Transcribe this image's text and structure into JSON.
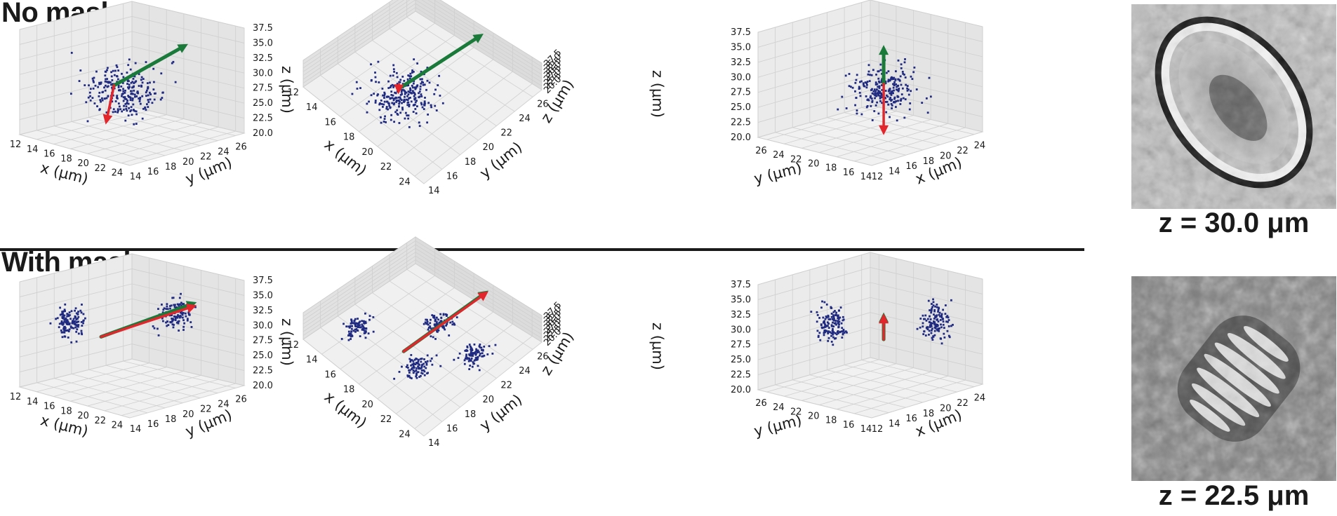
{
  "rows": [
    {
      "title": "No mask"
    },
    {
      "title": "With mask"
    }
  ],
  "images": [
    {
      "caption": "z = 30.0 μm"
    },
    {
      "caption": "z = 22.5 μm"
    }
  ],
  "colors": {
    "points": "#1f2a80",
    "green_arrow": "#1a7a3a",
    "red_arrow": "#e3262b",
    "pane": "#ebebeb",
    "grid": "#cfcfcf"
  },
  "chart_data": [
    {
      "type": "scatter",
      "title": "",
      "view": "perspective",
      "row": "No mask",
      "x_ticks": [
        "12",
        "14",
        "16",
        "18",
        "20",
        "22",
        "24"
      ],
      "y_ticks": [
        "14",
        "16",
        "18",
        "20",
        "22",
        "24",
        "26"
      ],
      "z_ticks": [
        "20.0",
        "22.5",
        "25.0",
        "27.5",
        "30.0",
        "32.5",
        "35.0",
        "37.5"
      ],
      "xlabel": "x (μm)",
      "ylabel": "y (μm)",
      "zlabel": "z (μm)",
      "xlim": [
        12,
        25
      ],
      "ylim": [
        14,
        27
      ],
      "zlim": [
        20,
        37.5
      ],
      "clusters": [
        {
          "cx": 19,
          "cy": 19,
          "cz": 28,
          "sx": 2.8,
          "sy": 2.5,
          "sz": 3.2,
          "n": 260
        }
      ],
      "vectors": [
        {
          "color": "green",
          "from": [
            18.5,
            18.5,
            29
          ],
          "to": [
            19,
            26.5,
            33
          ]
        },
        {
          "color": "red",
          "from": [
            18.5,
            18.5,
            29
          ],
          "to": [
            16,
            20,
            21
          ]
        }
      ]
    },
    {
      "type": "scatter",
      "title": "",
      "view": "top",
      "row": "No mask",
      "x_ticks": [
        "12",
        "14",
        "16",
        "18",
        "20",
        "22",
        "24"
      ],
      "y_ticks": [
        "14",
        "16",
        "18",
        "20",
        "22",
        "24",
        "26"
      ],
      "z_ticks": [
        "20.0",
        "22.5",
        "25.0",
        "27.5",
        "30.0",
        "32.5",
        "35.0",
        "37.5"
      ],
      "xlabel": "x (μm)",
      "ylabel": "y (μm)",
      "zlabel": "z (μm)",
      "xlim": [
        12,
        25
      ],
      "ylim": [
        14,
        27
      ],
      "zlim": [
        20,
        37.5
      ],
      "clusters": [
        {
          "cx": 18.5,
          "cy": 18.5,
          "cz": 28,
          "sx": 2.2,
          "sy": 2.2,
          "sz": 3,
          "n": 260
        }
      ],
      "vectors": [
        {
          "color": "green",
          "from": [
            18,
            18.5,
            29
          ],
          "to": [
            19,
            27,
            33
          ]
        },
        {
          "color": "red",
          "from": [
            18,
            18.5,
            29
          ],
          "to": [
            17.5,
            19,
            21
          ]
        }
      ]
    },
    {
      "type": "scatter",
      "title": "",
      "view": "side",
      "row": "No mask",
      "x_ticks": [
        "12",
        "14",
        "16",
        "18",
        "20",
        "22",
        "24"
      ],
      "y_ticks": [
        "14",
        "16",
        "18",
        "20",
        "22",
        "24",
        "26"
      ],
      "z_ticks": [
        "20.0",
        "22.5",
        "25.0",
        "27.5",
        "30.0",
        "32.5",
        "35.0",
        "37.5"
      ],
      "xlabel": "x (μm)",
      "ylabel": "y (μm)",
      "zlabel": "z (μm)",
      "xlim": [
        12,
        25
      ],
      "ylim": [
        14,
        27
      ],
      "zlim": [
        20,
        37.5
      ],
      "clusters": [
        {
          "cx": 18.5,
          "cy": 19,
          "cz": 28,
          "sx": 2.4,
          "sy": 2.4,
          "sz": 3.2,
          "n": 240
        }
      ],
      "vectors": [
        {
          "color": "green",
          "from": [
            18.5,
            19,
            29
          ],
          "to": [
            18.5,
            19,
            35.5
          ]
        },
        {
          "color": "red",
          "from": [
            18.5,
            19,
            29
          ],
          "to": [
            18.5,
            19,
            20.5
          ]
        }
      ]
    },
    {
      "type": "scatter",
      "title": "",
      "view": "perspective",
      "row": "With mask",
      "x_ticks": [
        "12",
        "14",
        "16",
        "18",
        "20",
        "22",
        "24"
      ],
      "y_ticks": [
        "14",
        "16",
        "18",
        "20",
        "22",
        "24",
        "26"
      ],
      "z_ticks": [
        "20.0",
        "22.5",
        "25.0",
        "27.5",
        "30.0",
        "32.5",
        "35.0",
        "37.5"
      ],
      "xlabel": "x (μm)",
      "ylabel": "y (μm)",
      "zlabel": "z (μm)",
      "xlim": [
        12,
        25
      ],
      "ylim": [
        14,
        27
      ],
      "zlim": [
        20,
        37.5
      ],
      "clusters": [
        {
          "cx": 15,
          "cy": 17,
          "cz": 31,
          "sx": 0.9,
          "sy": 1.3,
          "sz": 2.0,
          "n": 130
        },
        {
          "cx": 21,
          "cy": 23,
          "cz": 32,
          "sx": 0.9,
          "sy": 1.3,
          "sz": 2.0,
          "n": 130
        }
      ],
      "vectors": [
        {
          "color": "green",
          "from": [
            17.5,
            18,
            29
          ],
          "to": [
            19.5,
            27,
            32
          ]
        },
        {
          "color": "red",
          "from": [
            17.5,
            18,
            29
          ],
          "to": [
            19.5,
            27,
            31.5
          ]
        }
      ]
    },
    {
      "type": "scatter",
      "title": "",
      "view": "top",
      "row": "With mask",
      "x_ticks": [
        "12",
        "14",
        "16",
        "18",
        "20",
        "22",
        "24"
      ],
      "y_ticks": [
        "14",
        "16",
        "18",
        "20",
        "22",
        "24",
        "26"
      ],
      "z_ticks": [
        "20.0",
        "22.5",
        "25.0",
        "27.5",
        "30.0",
        "32.5",
        "35.0",
        "37.5"
      ],
      "xlabel": "x (μm)",
      "ylabel": "y (μm)",
      "zlabel": "z (μm)",
      "xlim": [
        12,
        25
      ],
      "ylim": [
        14,
        27
      ],
      "zlim": [
        20,
        37.5
      ],
      "clusters": [
        {
          "cx": 15,
          "cy": 17,
          "cz": 30,
          "sx": 0.8,
          "sy": 1.0,
          "sz": 2,
          "n": 90
        },
        {
          "cx": 19,
          "cy": 22,
          "cz": 30,
          "sx": 0.8,
          "sy": 1.0,
          "sz": 2,
          "n": 90
        },
        {
          "cx": 21,
          "cy": 17.5,
          "cz": 30,
          "sx": 0.8,
          "sy": 1.0,
          "sz": 2,
          "n": 90
        },
        {
          "cx": 23,
          "cy": 21.5,
          "cz": 30,
          "sx": 0.8,
          "sy": 1.0,
          "sz": 2,
          "n": 90
        }
      ],
      "vectors": [
        {
          "color": "green",
          "from": [
            19,
            18,
            29
          ],
          "to": [
            19.5,
            27,
            32
          ]
        },
        {
          "color": "red",
          "from": [
            19,
            18,
            29
          ],
          "to": [
            19.5,
            27,
            31.5
          ]
        }
      ]
    },
    {
      "type": "scatter",
      "title": "",
      "view": "side",
      "row": "With mask",
      "x_ticks": [
        "12",
        "14",
        "16",
        "18",
        "20",
        "22",
        "24"
      ],
      "y_ticks": [
        "14",
        "16",
        "18",
        "20",
        "22",
        "24",
        "26"
      ],
      "z_ticks": [
        "20.0",
        "22.5",
        "25.0",
        "27.5",
        "30.0",
        "32.5",
        "35.0",
        "37.5"
      ],
      "xlabel": "x (μm)",
      "ylabel": "y (μm)",
      "zlabel": "z (μm)",
      "xlim": [
        12,
        25
      ],
      "ylim": [
        14,
        27
      ],
      "zlim": [
        20,
        37.5
      ],
      "clusters": [
        {
          "cx": 15.5,
          "cy": 22,
          "cz": 31,
          "sx": 1.0,
          "sy": 1.0,
          "sz": 2.4,
          "n": 130
        },
        {
          "cx": 21.5,
          "cy": 16,
          "cz": 31,
          "sx": 1.0,
          "sy": 1.0,
          "sz": 2.4,
          "n": 130
        }
      ],
      "vectors": [
        {
          "color": "green",
          "from": [
            18.5,
            19,
            28.5
          ],
          "to": [
            18.5,
            19,
            33
          ]
        },
        {
          "color": "red",
          "from": [
            18.5,
            19,
            28.5
          ],
          "to": [
            18.5,
            19,
            32.8
          ]
        }
      ]
    }
  ]
}
